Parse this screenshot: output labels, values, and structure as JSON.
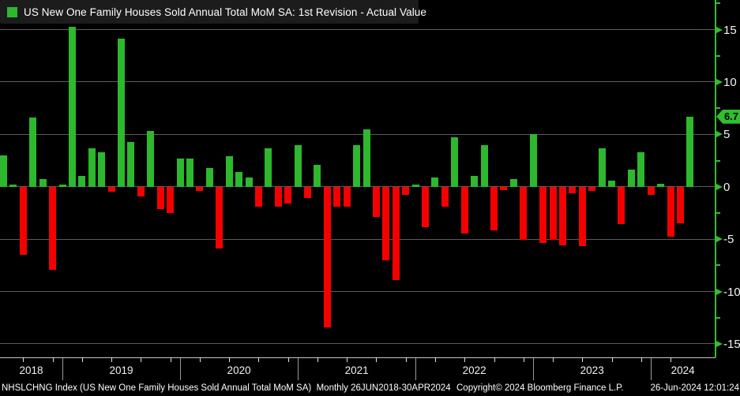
{
  "legend": {
    "label": "US New One Family Houses Sold Annual Total MoM SA: 1st Revision - Actual Value",
    "swatch_color": "#2db82d"
  },
  "colors": {
    "positive": "#2db82d",
    "negative": "#f50000",
    "axis_green": "#2fbf2f",
    "gridline": "#5c5c5c",
    "baseline": "#c8c8c8",
    "background": "#000000",
    "badge_bg": "#2fbf2f",
    "badge_text": "#000000"
  },
  "y_axis": {
    "major_ticks": [
      15,
      10,
      5,
      0,
      -5,
      -10,
      -15
    ],
    "minor_ticks": [
      17.5,
      12.5,
      7.5,
      2.5,
      -2.5,
      -7.5,
      -12.5
    ],
    "current_value": 6.7,
    "current_value_label": "6.7"
  },
  "x_axis": {
    "year_labels": [
      "2018",
      "2019",
      "2020",
      "2021",
      "2022",
      "2023",
      "2024"
    ]
  },
  "chart_data": {
    "type": "bar",
    "title": "US New One Family Houses Sold Annual Total MoM SA: 1st Revision - Actual Value",
    "xlabel": "",
    "ylabel": "",
    "ylim": [
      -17,
      17.8
    ],
    "grid": true,
    "frequency": "monthly",
    "period": "26JUN2018-30APR2024",
    "x": [
      "2018-06",
      "2018-07",
      "2018-08",
      "2018-09",
      "2018-10",
      "2018-11",
      "2018-12",
      "2019-01",
      "2019-02",
      "2019-03",
      "2019-04",
      "2019-05",
      "2019-06",
      "2019-07",
      "2019-08",
      "2019-09",
      "2019-10",
      "2019-11",
      "2019-12",
      "2020-01",
      "2020-02",
      "2020-03",
      "2020-04",
      "2020-05",
      "2020-06",
      "2020-07",
      "2020-08",
      "2020-09",
      "2020-10",
      "2020-11",
      "2020-12",
      "2021-01",
      "2021-02",
      "2021-03",
      "2021-04",
      "2021-05",
      "2021-06",
      "2021-07",
      "2021-08",
      "2021-09",
      "2021-10",
      "2021-11",
      "2021-12",
      "2022-01",
      "2022-02",
      "2022-03",
      "2022-04",
      "2022-05",
      "2022-06",
      "2022-07",
      "2022-08",
      "2022-09",
      "2022-10",
      "2022-11",
      "2022-12",
      "2023-01",
      "2023-02",
      "2023-03",
      "2023-04",
      "2023-05",
      "2023-06",
      "2023-07",
      "2023-08",
      "2023-09",
      "2023-10",
      "2023-11",
      "2023-12",
      "2024-01",
      "2024-02",
      "2024-03",
      "2024-04"
    ],
    "values": [
      3.0,
      0.2,
      -6.5,
      6.6,
      0.7,
      -7.9,
      0.2,
      15.3,
      1.0,
      3.7,
      3.3,
      -0.5,
      14.1,
      4.3,
      -0.9,
      5.3,
      -2.1,
      -2.5,
      2.7,
      2.7,
      -0.4,
      1.8,
      -5.9,
      2.9,
      1.4,
      0.9,
      -1.9,
      3.7,
      -1.9,
      -1.6,
      4.0,
      -1.1,
      2.1,
      -13.4,
      -1.9,
      -1.9,
      4.0,
      5.5,
      -2.9,
      -7.0,
      -8.9,
      -0.8,
      0.2,
      -3.9,
      0.9,
      -1.9,
      4.7,
      -4.5,
      1.0,
      4.0,
      -4.2,
      -0.3,
      0.7,
      -5.1,
      5.0,
      -5.4,
      -5.1,
      -5.6,
      -0.6,
      -5.7,
      -0.4,
      3.7,
      0.6,
      -3.6,
      1.6,
      3.3,
      -0.8,
      0.3,
      -4.8,
      -3.5,
      6.7
    ],
    "last_value": 6.7,
    "legend_position": "top-left"
  },
  "status_bar": {
    "left": "NHSLCHNG Index (US New One Family Houses Sold Annual Total MoM SA)  Monthly 26JUN2018-30APR2024",
    "center": "Copyright© 2024 Bloomberg Finance L.P.",
    "right": "26-Jun-2024 12:01:24"
  }
}
